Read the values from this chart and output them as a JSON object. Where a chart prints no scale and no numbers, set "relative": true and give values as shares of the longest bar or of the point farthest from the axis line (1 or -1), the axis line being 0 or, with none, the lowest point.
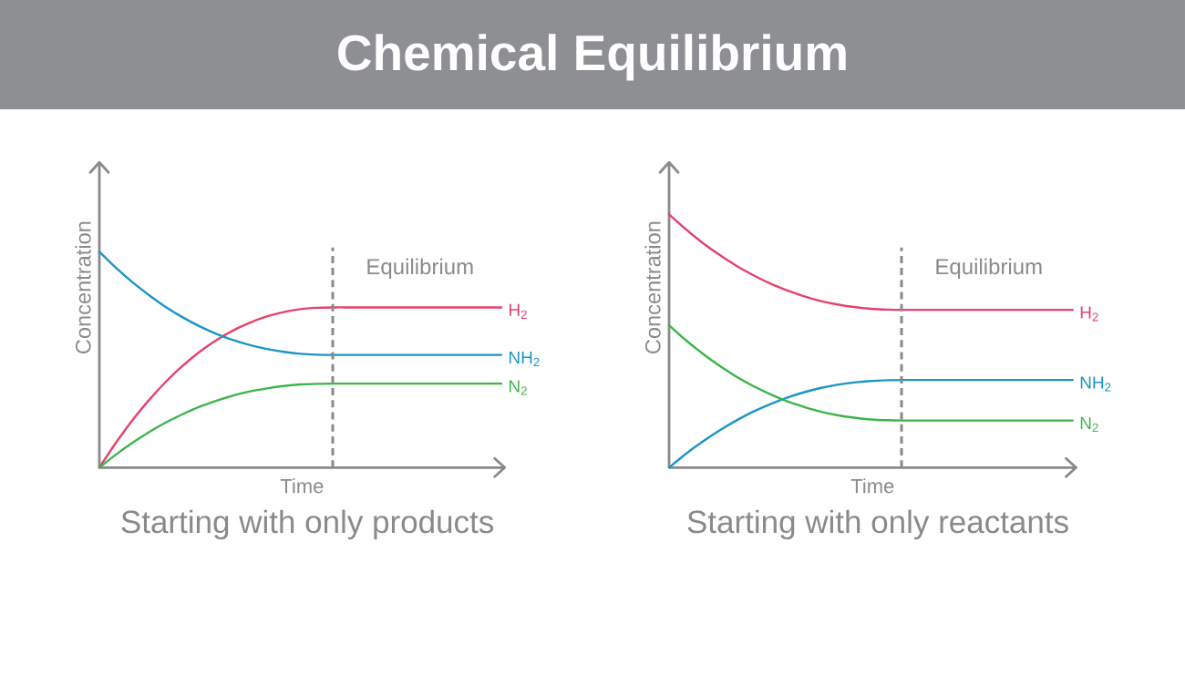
{
  "chart_data": [
    {
      "type": "line",
      "title": "Chemical Equilibrium",
      "subtitle": "Starting with only products",
      "xlabel": "Time",
      "ylabel": "Concentration",
      "relative": true,
      "categories": [
        null,
        null,
        null,
        null,
        null,
        null,
        null,
        null,
        null,
        null,
        null,
        null,
        null,
        null,
        null,
        null,
        null,
        null,
        null,
        null,
        null,
        null,
        null,
        null,
        null
      ],
      "series": [
        {
          "name": "H$_{2}$",
          "color": "#e5416b",
          "values": [
            0,
            0.116,
            0.222,
            0.316,
            0.4,
            0.473,
            0.537,
            0.591,
            0.636,
            0.672,
            0.7,
            0.72,
            0.734,
            0.74,
            0.742,
            0.742,
            0.742,
            0.742,
            0.742,
            0.742,
            0.742,
            0.742,
            0.742,
            0.742,
            0.742
          ]
        },
        {
          "name": "NH$_{2}$",
          "color": "#1b95c6",
          "values": [
            1,
            0.925,
            0.857,
            0.797,
            0.742,
            0.695,
            0.654,
            0.619,
            0.59,
            0.567,
            0.549,
            0.536,
            0.527,
            0.523,
            0.522,
            0.522,
            0.522,
            0.522,
            0.522,
            0.522,
            0.522,
            0.522,
            0.522,
            0.522,
            0.522
          ]
        },
        {
          "name": "N$_{2}$",
          "color": "#3bb54a",
          "values": [
            0,
            0.061,
            0.116,
            0.166,
            0.21,
            0.248,
            0.282,
            0.31,
            0.334,
            0.353,
            0.367,
            0.378,
            0.385,
            0.388,
            0.389,
            0.389,
            0.389,
            0.389,
            0.389,
            0.389,
            0.389,
            0.389,
            0.389,
            0.389,
            0.389
          ]
        }
      ],
      "annotations": [
        "Equilibrium"
      ]
    },
    {
      "type": "line",
      "subtitle": "Starting with only reactants",
      "xlabel": "Time",
      "ylabel": "Concentration",
      "relative": true,
      "categories": [
        null,
        null,
        null,
        null,
        null,
        null,
        null,
        null,
        null,
        null,
        null,
        null,
        null,
        null,
        null,
        null,
        null,
        null,
        null,
        null,
        null,
        null,
        null,
        null,
        null
      ],
      "series": [
        {
          "name": "H$_{2}$",
          "color": "#e5416b",
          "values": [
            1,
            0.941,
            0.887,
            0.84,
            0.797,
            0.76,
            0.727,
            0.7,
            0.677,
            0.658,
            0.644,
            0.634,
            0.627,
            0.624,
            0.623,
            0.623,
            0.623,
            0.623,
            0.623,
            0.623,
            0.623,
            0.623,
            0.623,
            0.623,
            0.623
          ]
        },
        {
          "name": "NH$_{2}$",
          "color": "#1b95c6",
          "values": [
            0,
            0.054,
            0.103,
            0.147,
            0.186,
            0.221,
            0.25,
            0.276,
            0.297,
            0.314,
            0.327,
            0.336,
            0.342,
            0.345,
            0.346,
            0.346,
            0.346,
            0.346,
            0.346,
            0.346,
            0.346,
            0.346,
            0.346,
            0.346,
            0.346
          ]
        },
        {
          "name": "N$_{2}$",
          "color": "#3bb54a",
          "values": [
            0.562,
            0.503,
            0.45,
            0.402,
            0.359,
            0.322,
            0.29,
            0.262,
            0.24,
            0.221,
            0.207,
            0.197,
            0.19,
            0.187,
            0.186,
            0.186,
            0.186,
            0.186,
            0.186,
            0.186,
            0.186,
            0.186,
            0.186,
            0.186,
            0.186
          ]
        }
      ],
      "annotations": [
        "Equilibrium"
      ]
    }
  ]
}
